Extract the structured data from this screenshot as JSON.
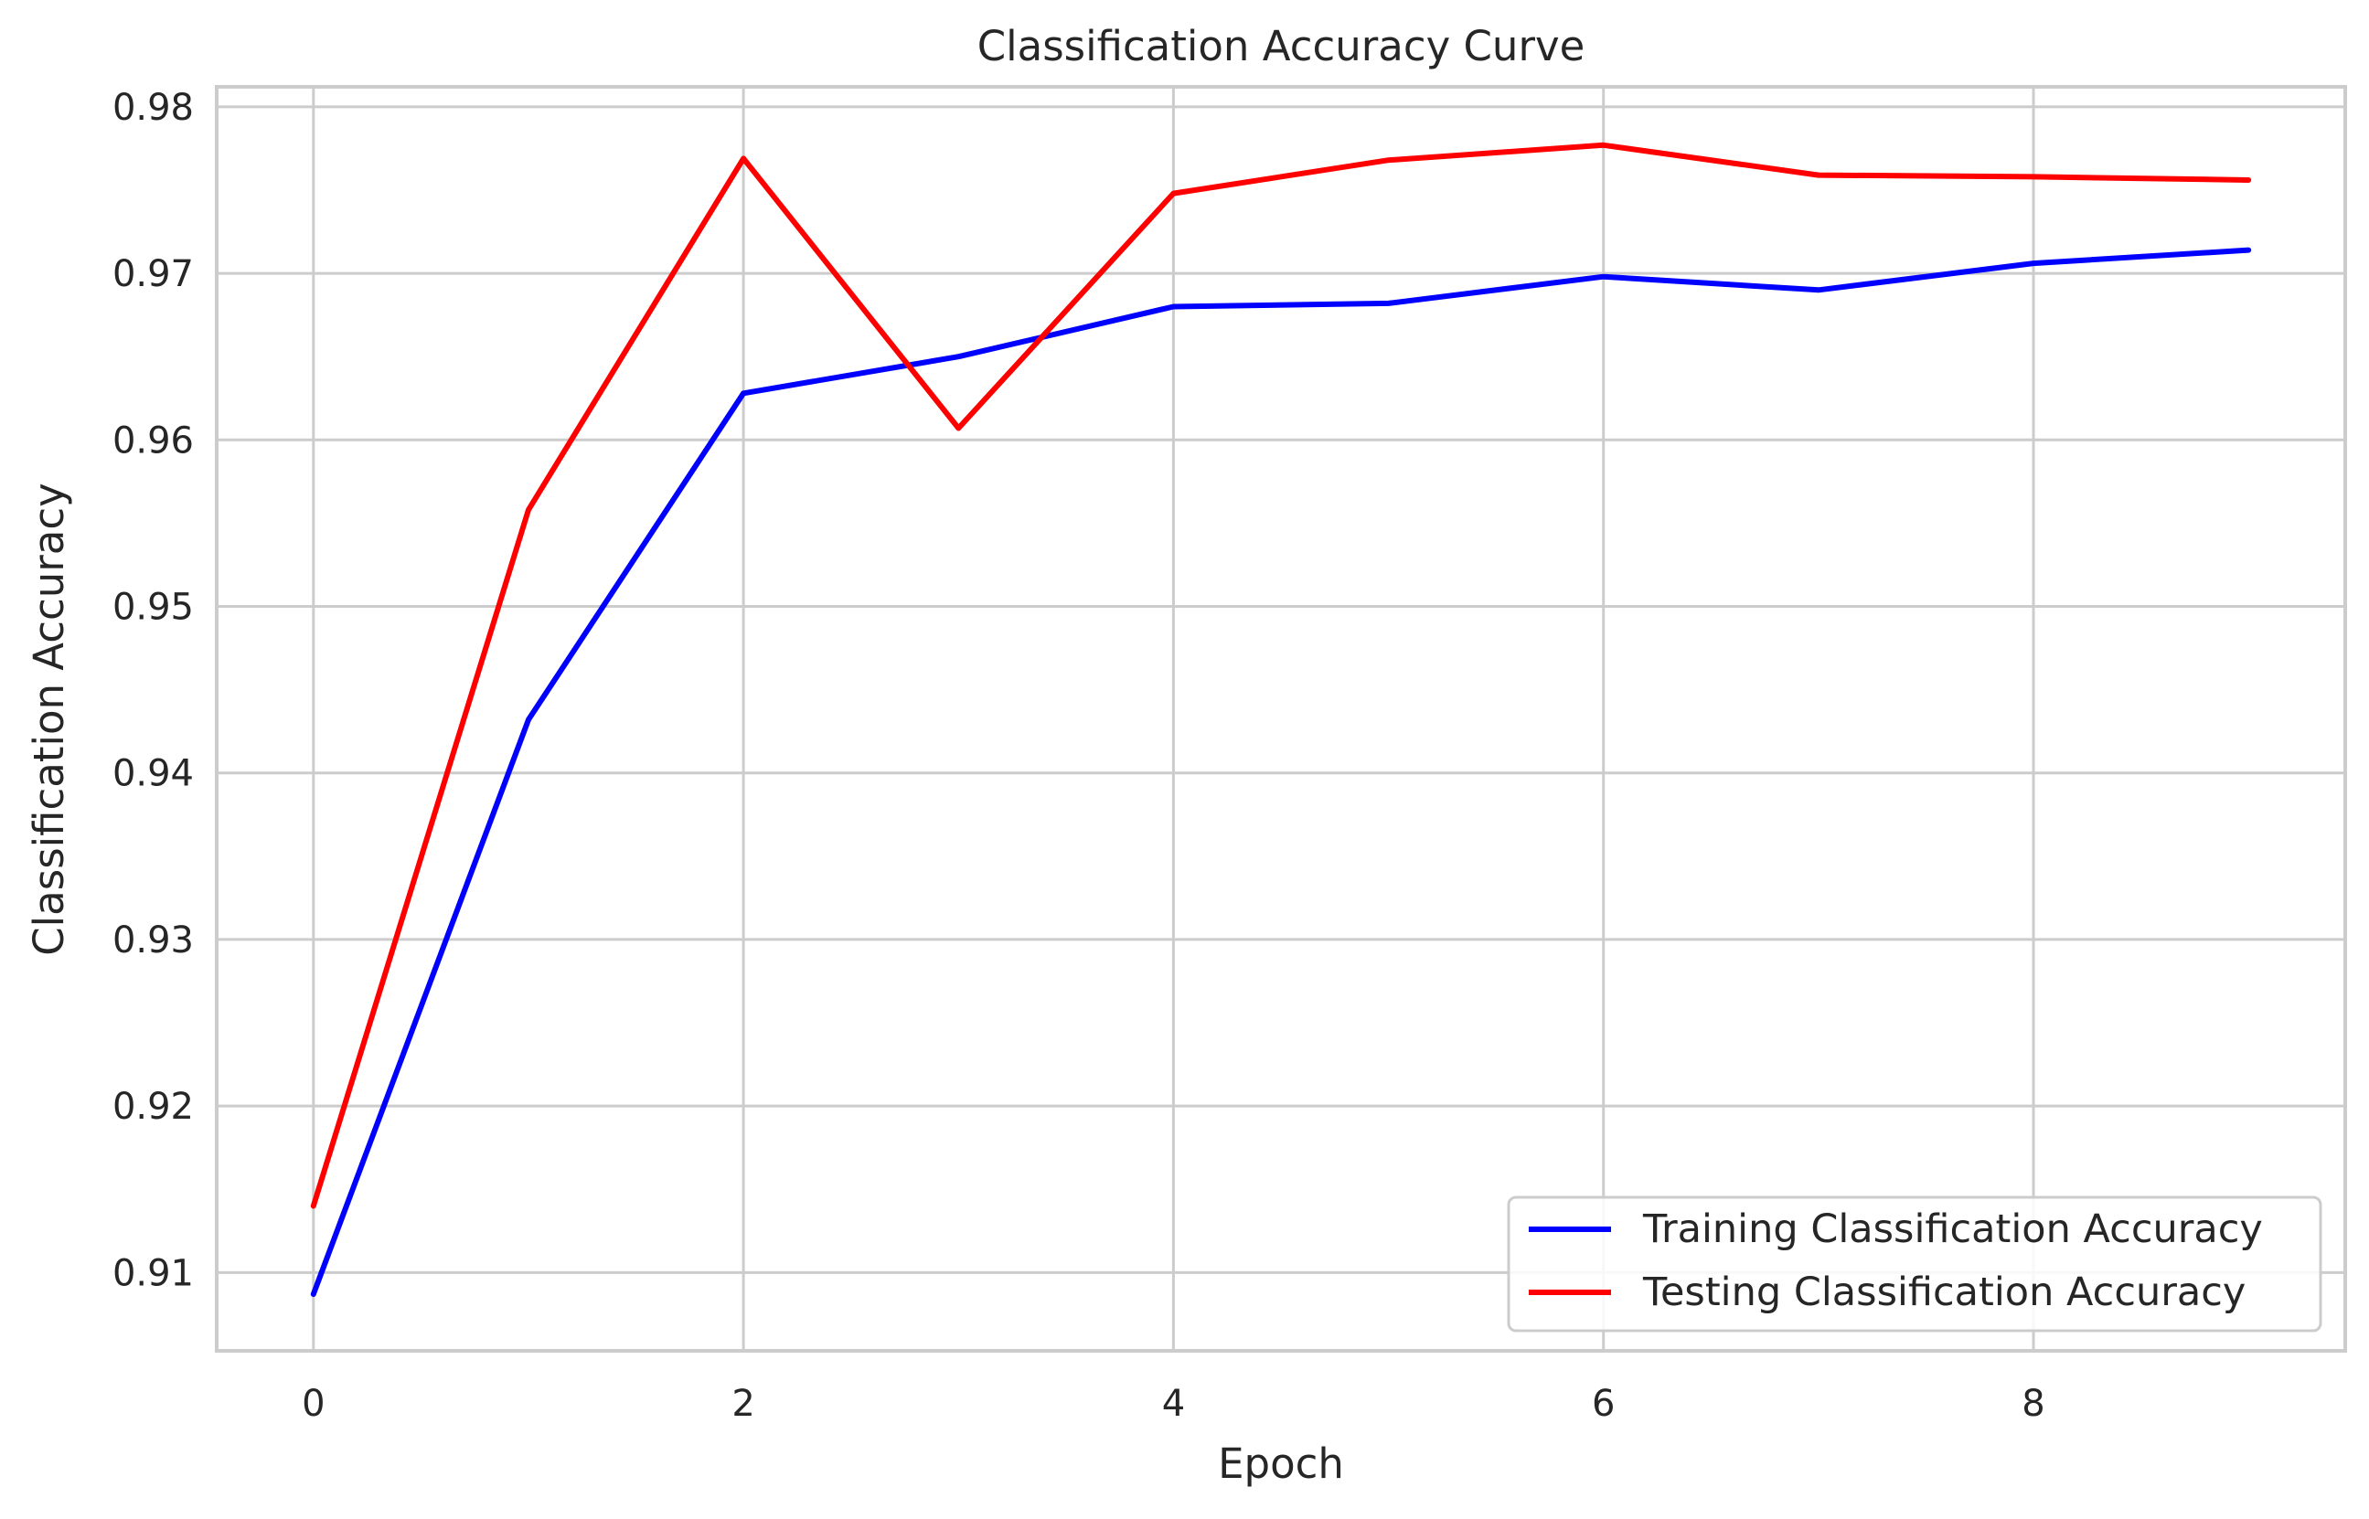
{
  "chart_data": {
    "type": "line",
    "title": "Classification Accuracy Curve",
    "xlabel": "Epoch",
    "ylabel": "Classification Accuracy",
    "x": [
      0,
      1,
      2,
      3,
      4,
      5,
      6,
      7,
      8,
      9
    ],
    "xlim": [
      -0.45,
      9.45
    ],
    "ylim": [
      0.9053,
      0.9812
    ],
    "xticks": [
      0,
      2,
      4,
      6,
      8
    ],
    "yticks": [
      0.91,
      0.92,
      0.93,
      0.94,
      0.95,
      0.96,
      0.97,
      0.98
    ],
    "xtick_labels": [
      "0",
      "2",
      "4",
      "6",
      "8"
    ],
    "ytick_labels": [
      "0.91",
      "0.92",
      "0.93",
      "0.94",
      "0.95",
      "0.96",
      "0.97",
      "0.98"
    ],
    "grid": true,
    "legend_position": "lower right",
    "series": [
      {
        "name": "Training Classification Accuracy",
        "color": "#0000ff",
        "values": [
          0.9087,
          0.9432,
          0.9628,
          0.965,
          0.968,
          0.9682,
          0.9698,
          0.969,
          0.9706,
          0.9714
        ]
      },
      {
        "name": "Testing Classification Accuracy",
        "color": "#ff0000",
        "values": [
          0.914,
          0.9558,
          0.9769,
          0.9607,
          0.9748,
          0.9768,
          0.9777,
          0.9759,
          0.9758,
          0.9756
        ]
      }
    ]
  }
}
